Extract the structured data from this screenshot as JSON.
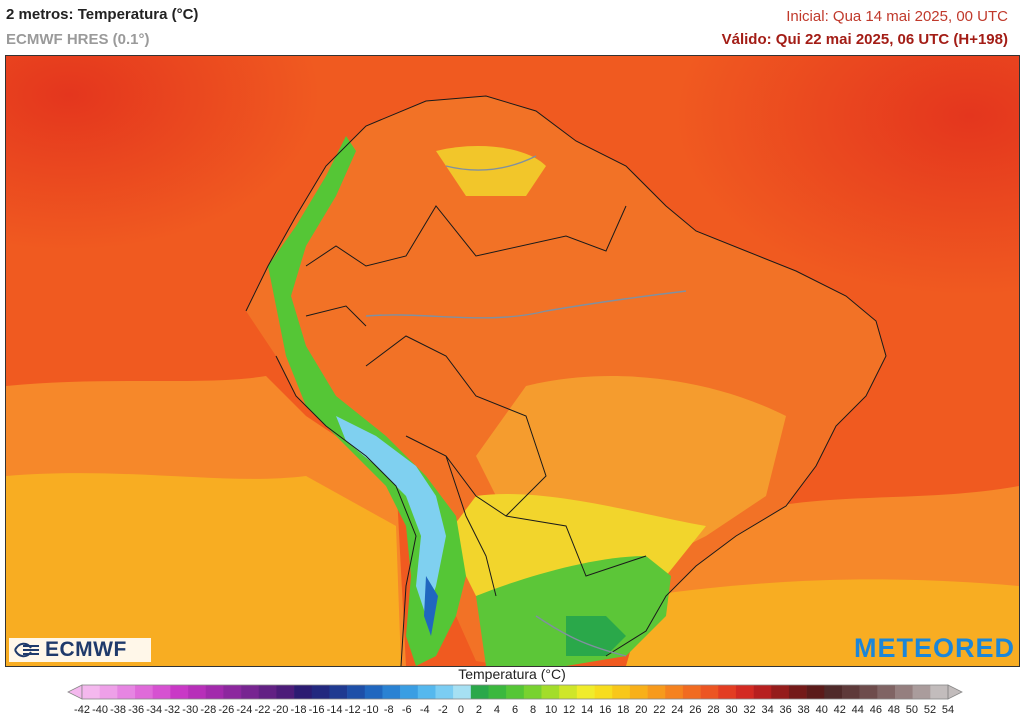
{
  "header": {
    "title": "2 metros: Temperatura (°C)",
    "model": "ECMWF HRES (0.1°)",
    "initial": "Inicial: Qua 14 mai 2025, 00 UTC",
    "valid": "Válido: Qui 22 mai 2025, 06 UTC (H+198)"
  },
  "logos": {
    "left": "ECMWF",
    "right": "METEORED"
  },
  "legend": {
    "title": "Temperatura (°C)",
    "ticks": [
      -42,
      -40,
      -38,
      -36,
      -34,
      -32,
      -30,
      -28,
      -26,
      -24,
      -22,
      -20,
      -18,
      -16,
      -14,
      -12,
      -10,
      -8,
      -6,
      -4,
      -2,
      0,
      2,
      4,
      6,
      8,
      10,
      12,
      14,
      16,
      18,
      20,
      22,
      24,
      26,
      28,
      30,
      32,
      34,
      36,
      38,
      40,
      42,
      44,
      46,
      48,
      50,
      52,
      54
    ],
    "colors": [
      "#f4b8ee",
      "#eea0e8",
      "#e685e2",
      "#df6ad9",
      "#d651d1",
      "#c938c6",
      "#b72fb9",
      "#a22aac",
      "#8c279e",
      "#772591",
      "#622184",
      "#4c1c79",
      "#2b1b72",
      "#22287f",
      "#1f3a91",
      "#1e4fa8",
      "#2067bf",
      "#2a82d3",
      "#3a9ee3",
      "#55b8ee",
      "#7bcdf3",
      "#a6e0f3",
      "#2aa84a",
      "#3bb83e",
      "#55c636",
      "#78d230",
      "#a3dd2a",
      "#cfe629",
      "#f0ec2b",
      "#f7dd1e",
      "#f8c71a",
      "#f8b019",
      "#f79a1c",
      "#f5821f",
      "#f16b21",
      "#ec5522",
      "#e33d22",
      "#d32a22",
      "#b71f1f",
      "#951c1b",
      "#741a19",
      "#5b1b1a",
      "#4f2a2a",
      "#5e3a3a",
      "#6e4c4c",
      "#806464",
      "#957f7f",
      "#aa9c9c",
      "#c2bcbc"
    ]
  },
  "map": {
    "colors": {
      "ocean_hot": "#e4361e",
      "ocean_warm": "#f05a20",
      "ocean_mild": "#f6882a",
      "ocean_cool": "#f8ad22",
      "land_warm": "#f27226",
      "land_mild": "#f59c2e",
      "yellow": "#f2d52c",
      "green": "#5cc638",
      "green_dark": "#2aa84a",
      "cyan": "#7fd0f0",
      "blue": "#2067bf",
      "border": "#1a1a1a",
      "river": "#8090a0"
    }
  }
}
